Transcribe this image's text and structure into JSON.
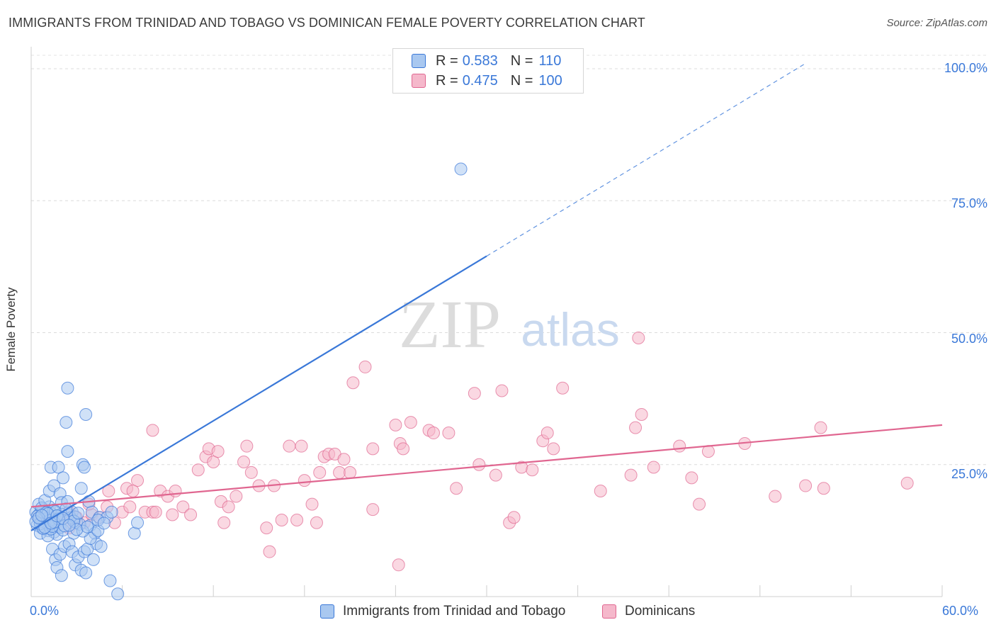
{
  "title": "IMMIGRANTS FROM TRINIDAD AND TOBAGO VS DOMINICAN FEMALE POVERTY CORRELATION CHART",
  "source": "Source: ZipAtlas.com",
  "watermark": {
    "zip": "ZIP",
    "atlas": "atlas"
  },
  "legend": {
    "series1": {
      "r_label": "R = ",
      "r_value": "0.583",
      "n_label": "N = ",
      "n_value": "110"
    },
    "series2": {
      "r_label": "R = ",
      "r_value": "0.475",
      "n_label": "N = ",
      "n_value": "100"
    }
  },
  "chart_data": {
    "type": "scatter",
    "title": "IMMIGRANTS FROM TRINIDAD AND TOBAGO VS DOMINICAN FEMALE POVERTY CORRELATION CHART",
    "xlabel": "",
    "ylabel": "Female Poverty",
    "xlim": [
      0,
      60
    ],
    "ylim": [
      0,
      105
    ],
    "x_tick_labels": [
      "0.0%",
      "60.0%"
    ],
    "y_ticks": [
      25,
      50,
      75,
      100
    ],
    "y_tick_labels": [
      "25.0%",
      "50.0%",
      "75.0%",
      "100.0%"
    ],
    "grid": "horizontal dashed",
    "legend_position": "top-center",
    "colors": {
      "series1": "#3a78d8",
      "series1_fill": "#a9c8f0",
      "series2": "#e06690",
      "series2_fill": "#f5b8cb"
    },
    "series": [
      {
        "name": "Immigrants from Trinidad and Tobago",
        "R": 0.583,
        "N": 110,
        "trend": {
          "x": [
            0,
            30
          ],
          "y": [
            12.5,
            64.5
          ],
          "dashed_extension_to": [
            51,
            101
          ]
        },
        "points": [
          [
            0.3,
            16
          ],
          [
            0.5,
            15.5
          ],
          [
            0.6,
            14
          ],
          [
            0.7,
            13
          ],
          [
            0.8,
            16.5
          ],
          [
            0.9,
            15
          ],
          [
            1.0,
            14
          ],
          [
            1.1,
            12.5
          ],
          [
            1.2,
            17
          ],
          [
            1.3,
            15.8
          ],
          [
            0.4,
            13.5
          ],
          [
            0.6,
            12
          ],
          [
            0.8,
            14.8
          ],
          [
            1.0,
            16.2
          ],
          [
            1.2,
            13.2
          ],
          [
            1.4,
            14.6
          ],
          [
            1.5,
            12.2
          ],
          [
            1.6,
            15.2
          ],
          [
            1.7,
            11.8
          ],
          [
            1.8,
            13.6
          ],
          [
            0.5,
            17.5
          ],
          [
            0.7,
            16.8
          ],
          [
            0.9,
            18.2
          ],
          [
            1.1,
            11.5
          ],
          [
            1.3,
            12.8
          ],
          [
            1.5,
            16.4
          ],
          [
            1.7,
            14.2
          ],
          [
            1.9,
            13.1
          ],
          [
            2.0,
            15.6
          ],
          [
            2.1,
            12.6
          ],
          [
            1.2,
            20
          ],
          [
            1.3,
            24.5
          ],
          [
            1.5,
            21
          ],
          [
            1.8,
            24.5
          ],
          [
            1.9,
            19.5
          ],
          [
            2.0,
            17.8
          ],
          [
            2.1,
            22.5
          ],
          [
            2.4,
            27.5
          ],
          [
            2.4,
            18
          ],
          [
            2.5,
            15.5
          ],
          [
            2.3,
            33
          ],
          [
            2.4,
            39.5
          ],
          [
            2.7,
            16
          ],
          [
            2.8,
            12
          ],
          [
            3.0,
            14
          ],
          [
            3.3,
            20.5
          ],
          [
            3.4,
            25
          ],
          [
            3.5,
            24.5
          ],
          [
            3.6,
            34.5
          ],
          [
            3.8,
            18
          ],
          [
            3.9,
            13.5
          ],
          [
            4.0,
            16
          ],
          [
            4.2,
            12
          ],
          [
            4.3,
            10
          ],
          [
            4.5,
            15
          ],
          [
            1.4,
            9
          ],
          [
            1.6,
            7
          ],
          [
            1.7,
            5.5
          ],
          [
            1.9,
            8
          ],
          [
            2.0,
            4
          ],
          [
            2.2,
            9.5
          ],
          [
            2.5,
            10
          ],
          [
            2.7,
            8.5
          ],
          [
            2.9,
            6
          ],
          [
            3.1,
            7.5
          ],
          [
            3.3,
            5
          ],
          [
            3.5,
            8.5
          ],
          [
            3.7,
            9
          ],
          [
            3.9,
            11
          ],
          [
            4.1,
            7
          ],
          [
            4.4,
            12.5
          ],
          [
            4.6,
            9.5
          ],
          [
            5.0,
            15
          ],
          [
            5.2,
            3
          ],
          [
            5.3,
            16
          ],
          [
            5.7,
            0.5
          ],
          [
            6.8,
            12
          ],
          [
            7.0,
            14
          ],
          [
            28.3,
            81
          ],
          [
            3.6,
            4.5
          ],
          [
            0.4,
            15.2
          ],
          [
            0.6,
            13.8
          ],
          [
            0.8,
            12.9
          ],
          [
            1.0,
            15.9
          ],
          [
            1.2,
            14.4
          ],
          [
            1.4,
            13.3
          ],
          [
            1.6,
            16.1
          ],
          [
            1.8,
            14.7
          ],
          [
            2.2,
            13.4
          ],
          [
            2.6,
            14.9
          ],
          [
            2.9,
            15.1
          ],
          [
            3.2,
            13.7
          ],
          [
            3.4,
            12.4
          ],
          [
            0.3,
            14.2
          ],
          [
            0.9,
            13.1
          ],
          [
            1.1,
            15.7
          ],
          [
            1.5,
            14.1
          ],
          [
            2.3,
            16.6
          ],
          [
            2.8,
            14.3
          ],
          [
            3.0,
            12.7
          ],
          [
            0.5,
            14.9
          ],
          [
            0.7,
            15.4
          ],
          [
            1.3,
            13.9
          ],
          [
            1.7,
            15.3
          ],
          [
            2.1,
            14.8
          ],
          [
            2.5,
            13.5
          ],
          [
            3.1,
            15.8
          ],
          [
            3.7,
            13.2
          ],
          [
            4.4,
            14.5
          ],
          [
            4.8,
            13.9
          ]
        ]
      },
      {
        "name": "Dominicans",
        "R": 0.475,
        "N": 100,
        "trend": {
          "x": [
            0,
            60
          ],
          "y": [
            17,
            32.5
          ]
        },
        "points": [
          [
            0.5,
            15
          ],
          [
            1.0,
            14
          ],
          [
            1.5,
            13.5
          ],
          [
            2.0,
            15
          ],
          [
            2.5,
            16
          ],
          [
            3.0,
            15
          ],
          [
            3.5,
            14
          ],
          [
            4.0,
            15.5
          ],
          [
            4.5,
            15
          ],
          [
            5.0,
            17
          ],
          [
            5.5,
            14
          ],
          [
            6.0,
            16
          ],
          [
            5.1,
            20
          ],
          [
            6.3,
            20.5
          ],
          [
            7.0,
            22
          ],
          [
            6.5,
            17
          ],
          [
            7.5,
            16
          ],
          [
            8.0,
            16
          ],
          [
            8.5,
            20
          ],
          [
            9.0,
            19
          ],
          [
            9.3,
            15.5
          ],
          [
            9.5,
            20
          ],
          [
            10.0,
            17
          ],
          [
            10.5,
            15.5
          ],
          [
            11.0,
            24
          ],
          [
            11.5,
            26.5
          ],
          [
            11.7,
            28
          ],
          [
            12.0,
            25.5
          ],
          [
            12.5,
            18
          ],
          [
            12.7,
            14
          ],
          [
            13.0,
            17
          ],
          [
            13.5,
            19
          ],
          [
            14.0,
            25.5
          ],
          [
            14.2,
            28.5
          ],
          [
            14.5,
            23.5
          ],
          [
            15.0,
            21
          ],
          [
            15.5,
            13
          ],
          [
            16.0,
            21
          ],
          [
            15.7,
            8.5
          ],
          [
            16.5,
            14.5
          ],
          [
            17.0,
            28.5
          ],
          [
            17.5,
            14.5
          ],
          [
            17.8,
            28.5
          ],
          [
            18.0,
            22
          ],
          [
            18.5,
            17.5
          ],
          [
            18.8,
            14
          ],
          [
            19.0,
            23.5
          ],
          [
            19.3,
            26.5
          ],
          [
            19.6,
            27
          ],
          [
            20.0,
            27
          ],
          [
            20.3,
            23.5
          ],
          [
            20.6,
            26
          ],
          [
            21.0,
            23.5
          ],
          [
            21.2,
            40.5
          ],
          [
            22.0,
            43.5
          ],
          [
            22.5,
            28
          ],
          [
            22.5,
            16.5
          ],
          [
            24.0,
            32.5
          ],
          [
            24.3,
            29
          ],
          [
            24.2,
            6
          ],
          [
            24.5,
            28
          ],
          [
            25.0,
            33
          ],
          [
            26.2,
            31.5
          ],
          [
            27.5,
            31
          ],
          [
            28.0,
            20.5
          ],
          [
            29.2,
            38.5
          ],
          [
            29.5,
            25
          ],
          [
            30.6,
            23
          ],
          [
            31.0,
            39
          ],
          [
            31.5,
            14
          ],
          [
            31.8,
            15
          ],
          [
            32.3,
            24.5
          ],
          [
            33.0,
            24
          ],
          [
            33.7,
            29.5
          ],
          [
            34.0,
            31
          ],
          [
            34.4,
            28
          ],
          [
            35.0,
            39.5
          ],
          [
            37.5,
            20
          ],
          [
            39.5,
            23
          ],
          [
            39.8,
            32
          ],
          [
            40.0,
            49
          ],
          [
            40.2,
            34.5
          ],
          [
            41.0,
            24.5
          ],
          [
            42.7,
            28.5
          ],
          [
            43.5,
            22.5
          ],
          [
            44.0,
            17.5
          ],
          [
            44.6,
            27.5
          ],
          [
            47.0,
            29
          ],
          [
            49.0,
            19
          ],
          [
            51.0,
            21
          ],
          [
            52.0,
            32
          ],
          [
            52.2,
            20.5
          ],
          [
            57.7,
            21.5
          ],
          [
            6.7,
            20
          ],
          [
            3.8,
            17.5
          ],
          [
            8.0,
            31.5
          ],
          [
            2.5,
            13
          ],
          [
            12.3,
            27.5
          ],
          [
            26.5,
            31
          ],
          [
            8.2,
            16
          ]
        ]
      }
    ]
  }
}
